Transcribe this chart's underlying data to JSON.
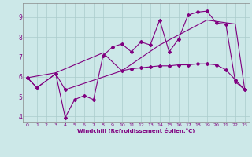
{
  "xlabel": "Windchill (Refroidissement éolien,°C)",
  "background_color": "#cce8e8",
  "line_color": "#800080",
  "grid_color": "#aacccc",
  "xlim": [
    -0.5,
    23.5
  ],
  "ylim": [
    3.7,
    9.7
  ],
  "yticks": [
    4,
    5,
    6,
    7,
    8,
    9
  ],
  "xticks": [
    0,
    1,
    2,
    3,
    4,
    5,
    6,
    7,
    8,
    9,
    10,
    11,
    12,
    13,
    14,
    15,
    16,
    17,
    18,
    19,
    20,
    21,
    22,
    23
  ],
  "line1_x": [
    0,
    1,
    3,
    4,
    5,
    6,
    7,
    8,
    9,
    10,
    11,
    12,
    13,
    14,
    15,
    16,
    17,
    18,
    19,
    20,
    21,
    22,
    23
  ],
  "line1_y": [
    5.95,
    5.45,
    6.15,
    3.95,
    4.85,
    5.05,
    4.85,
    7.05,
    7.5,
    7.65,
    7.25,
    7.75,
    7.6,
    8.85,
    7.25,
    7.9,
    9.1,
    9.25,
    9.3,
    8.7,
    8.65,
    5.75,
    5.35
  ],
  "line2_x": [
    0,
    1,
    3,
    4,
    10,
    11,
    12,
    13,
    14,
    15,
    16,
    17,
    18,
    19,
    20,
    21,
    22,
    23
  ],
  "line2_y": [
    5.95,
    5.45,
    6.15,
    5.35,
    6.3,
    6.4,
    6.45,
    6.5,
    6.55,
    6.55,
    6.6,
    6.6,
    6.65,
    6.65,
    6.6,
    6.35,
    5.85,
    5.35
  ],
  "line3_x": [
    0,
    3,
    8,
    10,
    14,
    19,
    22,
    23
  ],
  "line3_y": [
    5.95,
    6.2,
    7.2,
    6.3,
    7.6,
    8.85,
    8.65,
    5.35
  ]
}
